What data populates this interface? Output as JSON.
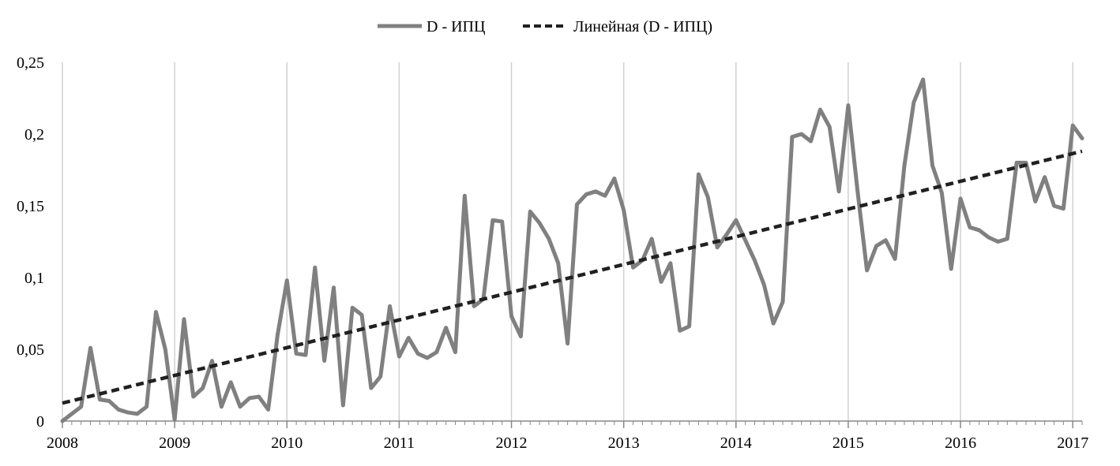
{
  "chart_data": {
    "type": "line",
    "legend": [
      "D - ИПЦ",
      "Линейная (D - ИПЦ)"
    ],
    "legend_position": "top",
    "grid": "vertical",
    "x_ticks": [
      "2008",
      "2009",
      "2010",
      "2011",
      "2012",
      "2013",
      "2014",
      "2015",
      "2016",
      "2017"
    ],
    "y_ticks": [
      "0",
      "0,05",
      "0,1",
      "0,15",
      "0,2",
      "0,25"
    ],
    "xlim": [
      2008,
      2017.083
    ],
    "ylim": [
      0,
      0.25
    ],
    "series": [
      {
        "name": "D - ИПЦ",
        "color": "#808080",
        "style": "solid",
        "values": [
          0.0,
          0.005,
          0.01,
          0.051,
          0.015,
          0.014,
          0.008,
          0.006,
          0.005,
          0.01,
          0.076,
          0.05,
          0.001,
          0.071,
          0.017,
          0.023,
          0.042,
          0.01,
          0.027,
          0.01,
          0.016,
          0.017,
          0.008,
          0.06,
          0.098,
          0.047,
          0.046,
          0.107,
          0.042,
          0.093,
          0.011,
          0.079,
          0.074,
          0.023,
          0.031,
          0.08,
          0.045,
          0.058,
          0.047,
          0.044,
          0.048,
          0.065,
          0.048,
          0.157,
          0.08,
          0.085,
          0.14,
          0.139,
          0.073,
          0.059,
          0.146,
          0.138,
          0.127,
          0.11,
          0.054,
          0.151,
          0.158,
          0.16,
          0.157,
          0.169,
          0.147,
          0.107,
          0.112,
          0.127,
          0.097,
          0.11,
          0.063,
          0.066,
          0.172,
          0.156,
          0.121,
          0.13,
          0.14,
          0.126,
          0.112,
          0.095,
          0.068,
          0.083,
          0.198,
          0.2,
          0.195,
          0.217,
          0.205,
          0.16,
          0.22,
          0.16,
          0.105,
          0.122,
          0.126,
          0.113,
          0.178,
          0.222,
          0.238,
          0.178,
          0.159,
          0.106,
          0.155,
          0.135,
          0.133,
          0.128,
          0.125,
          0.127,
          0.18,
          0.18,
          0.153,
          0.17,
          0.15,
          0.148,
          0.206,
          0.197
        ]
      },
      {
        "name": "Линейная (D - ИПЦ)",
        "color": "#202020",
        "style": "dashed",
        "trend": {
          "start": [
            2008,
            0.0125
          ],
          "end": [
            2017.083,
            0.188
          ]
        }
      }
    ]
  }
}
